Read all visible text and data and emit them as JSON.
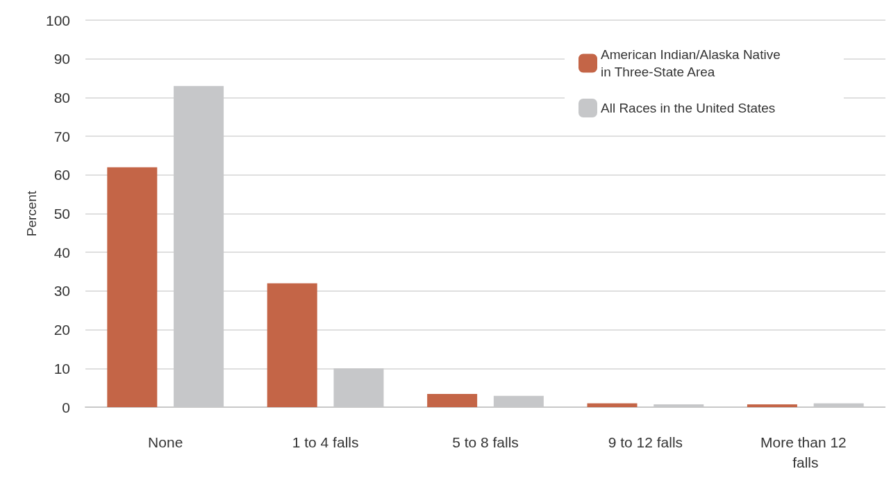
{
  "chart_data": {
    "type": "bar",
    "ylabel": "Percent",
    "categories": [
      "None",
      "1 to 4 falls",
      "5 to 8 falls",
      "9 to 12 falls",
      "More than 12 falls"
    ],
    "series": [
      {
        "name": "American Indian/Alaska Native in Three-State Area",
        "color": "#c46547",
        "values": [
          62,
          32,
          3.4,
          1.0,
          0.7
        ]
      },
      {
        "name": "All Races in the United States",
        "color": "#c6c7c9",
        "values": [
          83,
          10,
          2.9,
          0.7,
          1.0
        ]
      }
    ],
    "ylim": [
      0,
      100
    ],
    "yticks": [
      0,
      10,
      20,
      30,
      40,
      50,
      60,
      70,
      80,
      90,
      100
    ],
    "grid": "y",
    "legend": "top right"
  }
}
